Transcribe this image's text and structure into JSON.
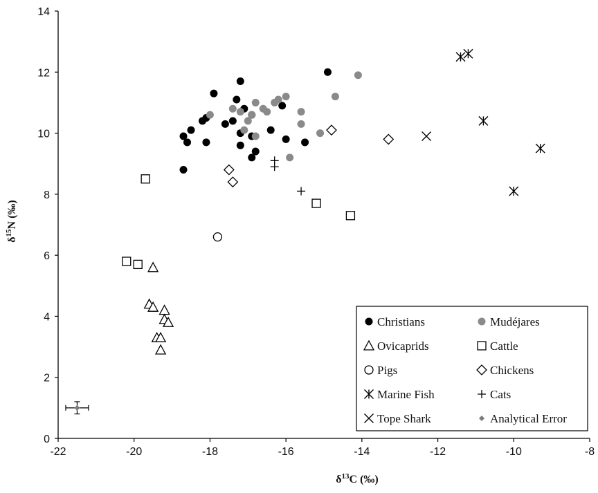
{
  "chart_data": {
    "type": "scatter",
    "title": "",
    "xlabel": {
      "prefix": "δ",
      "sup": "13",
      "main": "C (‰)"
    },
    "ylabel": {
      "prefix": "δ",
      "sup": "15",
      "main": "N (‰)"
    },
    "xlim": [
      -22,
      -8
    ],
    "ylim": [
      0,
      14
    ],
    "xticks": [
      -22,
      -20,
      -18,
      -16,
      -14,
      -12,
      -10,
      -8
    ],
    "yticks": [
      0,
      2,
      4,
      6,
      8,
      10,
      12,
      14
    ],
    "grid": false,
    "legend_position": "bottom-right",
    "series": [
      {
        "name": "Christians",
        "marker": "filled-circle",
        "color": "#000000",
        "points": [
          [
            -18.7,
            9.9
          ],
          [
            -18.5,
            10.1
          ],
          [
            -18.6,
            9.7
          ],
          [
            -18.7,
            8.8
          ],
          [
            -18.2,
            10.4
          ],
          [
            -18.1,
            10.5
          ],
          [
            -17.9,
            11.3
          ],
          [
            -18.1,
            9.7
          ],
          [
            -17.6,
            10.3
          ],
          [
            -17.4,
            10.4
          ],
          [
            -17.3,
            11.1
          ],
          [
            -17.2,
            10.0
          ],
          [
            -17.1,
            10.8
          ],
          [
            -16.9,
            10.6
          ],
          [
            -16.9,
            9.9
          ],
          [
            -17.2,
            11.7
          ],
          [
            -17.2,
            9.6
          ],
          [
            -16.9,
            9.2
          ],
          [
            -16.8,
            9.4
          ],
          [
            -16.4,
            10.1
          ],
          [
            -16.1,
            10.9
          ],
          [
            -16.0,
            9.8
          ],
          [
            -15.5,
            9.7
          ],
          [
            -14.9,
            12.0
          ]
        ]
      },
      {
        "name": "Mudéjares",
        "marker": "filled-circle",
        "color": "#8a8a8a",
        "points": [
          [
            -18.0,
            10.6
          ],
          [
            -17.4,
            10.8
          ],
          [
            -17.2,
            10.7
          ],
          [
            -17.1,
            10.1
          ],
          [
            -17.0,
            10.4
          ],
          [
            -16.9,
            10.6
          ],
          [
            -16.8,
            11.0
          ],
          [
            -16.8,
            9.9
          ],
          [
            -16.6,
            10.8
          ],
          [
            -16.5,
            10.7
          ],
          [
            -16.3,
            11.0
          ],
          [
            -16.2,
            11.1
          ],
          [
            -16.0,
            11.2
          ],
          [
            -15.9,
            9.2
          ],
          [
            -15.6,
            10.7
          ],
          [
            -15.6,
            10.3
          ],
          [
            -15.1,
            10.0
          ],
          [
            -14.7,
            11.2
          ],
          [
            -14.1,
            11.9
          ]
        ]
      },
      {
        "name": "Ovicaprids",
        "marker": "triangle",
        "points": [
          [
            -19.5,
            5.6
          ],
          [
            -19.6,
            4.4
          ],
          [
            -19.5,
            4.3
          ],
          [
            -19.2,
            4.2
          ],
          [
            -19.2,
            3.9
          ],
          [
            -19.1,
            3.8
          ],
          [
            -19.4,
            3.3
          ],
          [
            -19.3,
            3.3
          ],
          [
            -19.3,
            2.9
          ]
        ]
      },
      {
        "name": "Cattle",
        "marker": "square",
        "points": [
          [
            -19.7,
            8.5
          ],
          [
            -20.2,
            5.8
          ],
          [
            -19.9,
            5.7
          ],
          [
            -15.2,
            7.7
          ],
          [
            -14.3,
            7.3
          ]
        ]
      },
      {
        "name": "Pigs",
        "marker": "circle",
        "points": [
          [
            -17.8,
            6.6
          ]
        ]
      },
      {
        "name": "Chickens",
        "marker": "diamond",
        "points": [
          [
            -17.5,
            8.8
          ],
          [
            -17.4,
            8.4
          ],
          [
            -14.8,
            10.1
          ],
          [
            -13.3,
            9.8
          ]
        ]
      },
      {
        "name": "Marine Fish",
        "marker": "asterisk",
        "points": [
          [
            -11.4,
            12.5
          ],
          [
            -11.2,
            12.6
          ],
          [
            -10.8,
            10.4
          ],
          [
            -10.0,
            8.1
          ],
          [
            -9.3,
            9.5
          ]
        ]
      },
      {
        "name": "Cats",
        "marker": "plus",
        "points": [
          [
            -16.3,
            9.1
          ],
          [
            -16.3,
            8.9
          ],
          [
            -15.6,
            8.1
          ]
        ]
      },
      {
        "name": "Tope Shark",
        "marker": "x",
        "points": [
          [
            -12.3,
            9.9
          ]
        ]
      },
      {
        "name": "Analytical Error",
        "marker": "gray-diamond-errorbar",
        "color": "#7a7a7a",
        "points": [
          [
            -21.5,
            1.0
          ]
        ],
        "x_error": 0.3,
        "y_error": 0.2
      }
    ]
  }
}
